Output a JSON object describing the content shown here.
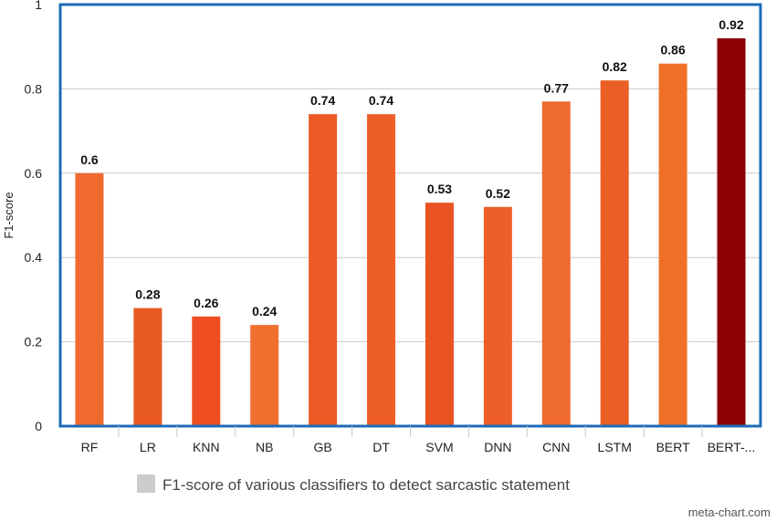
{
  "chart_data": {
    "type": "bar",
    "categories": [
      "RF",
      "LR",
      "KNN",
      "NB",
      "GB",
      "DT",
      "SVM",
      "DNN",
      "CNN",
      "LSTM",
      "BERT",
      "BERT-..."
    ],
    "values": [
      0.6,
      0.28,
      0.26,
      0.24,
      0.74,
      0.74,
      0.53,
      0.52,
      0.77,
      0.82,
      0.86,
      0.92
    ],
    "value_labels": [
      "0.6",
      "0.28",
      "0.26",
      "0.24",
      "0.74",
      "0.74",
      "0.53",
      "0.52",
      "0.77",
      "0.82",
      "0.86",
      "0.92"
    ],
    "bar_colors": [
      "#F06A30",
      "#E85A22",
      "#EF4E22",
      "#F07030",
      "#EC5A25",
      "#EE5F27",
      "#EA5322",
      "#EE5E2A",
      "#EF6A2E",
      "#EA5F26",
      "#F07028",
      "#8B0000"
    ],
    "title": "",
    "xlabel": "",
    "ylabel": "F1-score",
    "ylim": [
      0,
      1
    ],
    "yticks": [
      "0",
      "0.2",
      "0.4",
      "0.6",
      "0.8",
      "1"
    ],
    "grid": true,
    "legend": {
      "label": "F1-score of various classifiers to detect sarcastic statement",
      "swatch_color": "#CCCCCC",
      "position": "bottom"
    },
    "frame_color": "#1E6BB8"
  },
  "credit": "meta-chart.com"
}
